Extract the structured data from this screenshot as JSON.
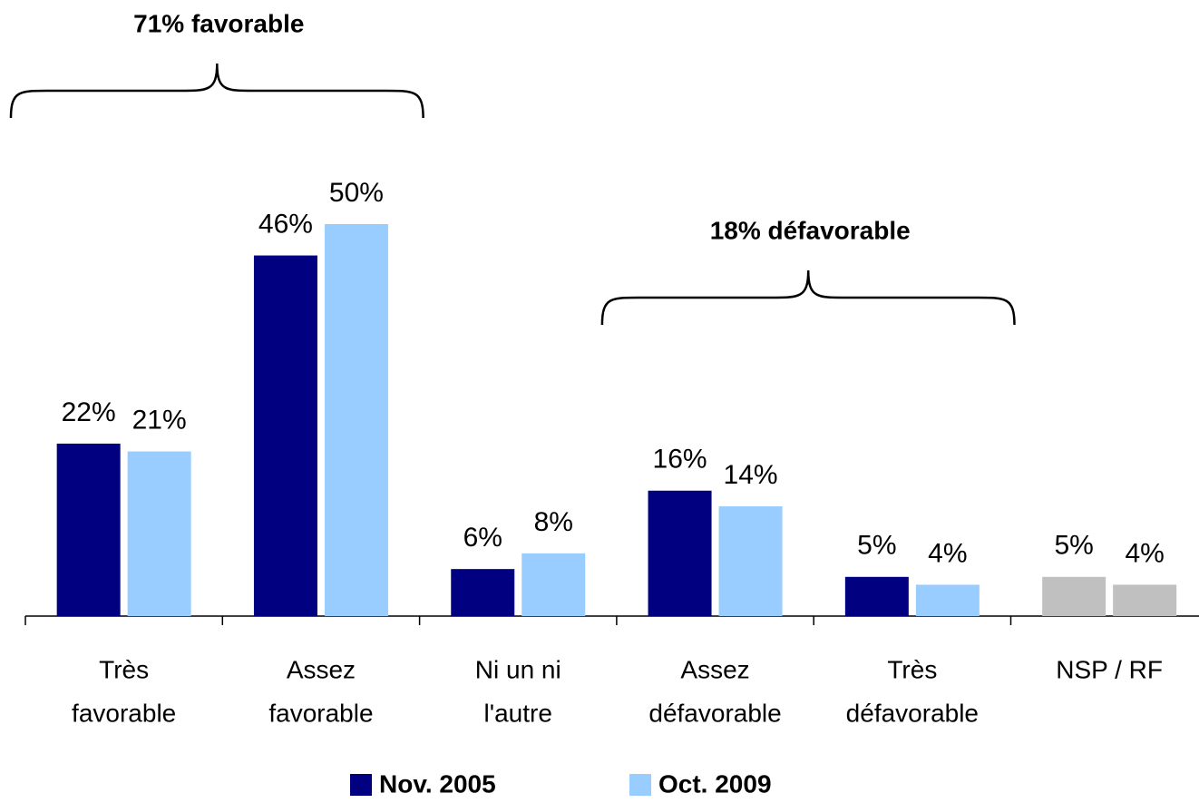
{
  "chart_data": {
    "type": "bar",
    "categories": [
      [
        "Très",
        "favorable"
      ],
      [
        "Assez",
        "favorable"
      ],
      [
        "Ni un ni",
        "l'autre"
      ],
      [
        "Assez",
        "défavorable"
      ],
      [
        "Très",
        "défavorable"
      ],
      [
        "NSP / RF"
      ]
    ],
    "series": [
      {
        "name": "Nov. 2005",
        "color": "#000080",
        "values": [
          22,
          46,
          6,
          16,
          5,
          5
        ],
        "value_labels": [
          "22%",
          "46%",
          "6%",
          "16%",
          "5%",
          "5%"
        ]
      },
      {
        "name": "Oct. 2009",
        "color": "#99ccff",
        "values": [
          21,
          50,
          8,
          14,
          4,
          4
        ],
        "value_labels": [
          "21%",
          "50%",
          "8%",
          "14%",
          "4%",
          "4%"
        ]
      }
    ],
    "special_categories": [
      5
    ],
    "special_color": "#c0c0c0",
    "ylim": [
      0,
      50
    ],
    "annotations": [
      {
        "text": "71% favorable",
        "from": 0,
        "to": 1
      },
      {
        "text": "18% défavorable",
        "from": 3,
        "to": 4
      }
    ]
  }
}
